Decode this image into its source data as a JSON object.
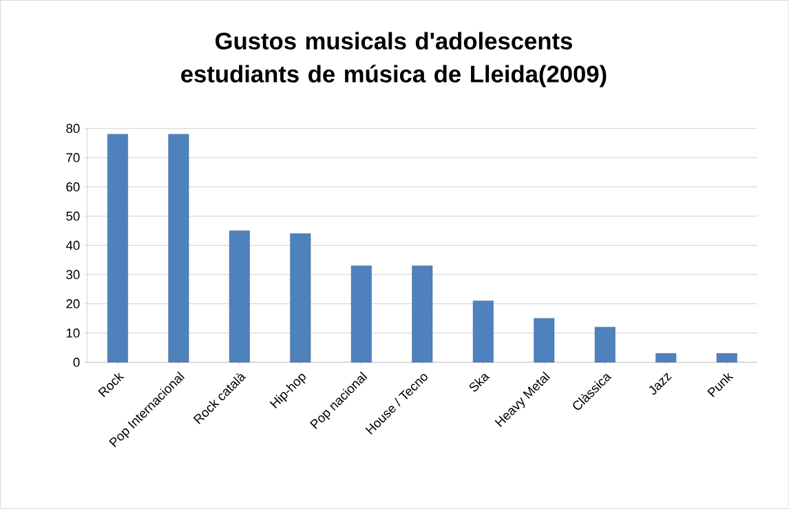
{
  "chart_data": {
    "type": "bar",
    "title": "Gustos musicals d'adolescents estudiants de música de Lleida(2009)",
    "categories": [
      "Rock",
      "Pop Internacional",
      "Rock català",
      "Hip-hop",
      "Pop nacional",
      "House / Tecno",
      "Ska",
      "Heavy Metal",
      "Clàssica",
      "Jazz",
      "Punk"
    ],
    "values": [
      78,
      78,
      45,
      44,
      33,
      33,
      21,
      15,
      12,
      3,
      3
    ],
    "color": "#4f81bd",
    "ylim": [
      0,
      80
    ],
    "yticks": [
      0,
      10,
      20,
      30,
      40,
      50,
      60,
      70,
      80
    ],
    "grid": "y"
  }
}
